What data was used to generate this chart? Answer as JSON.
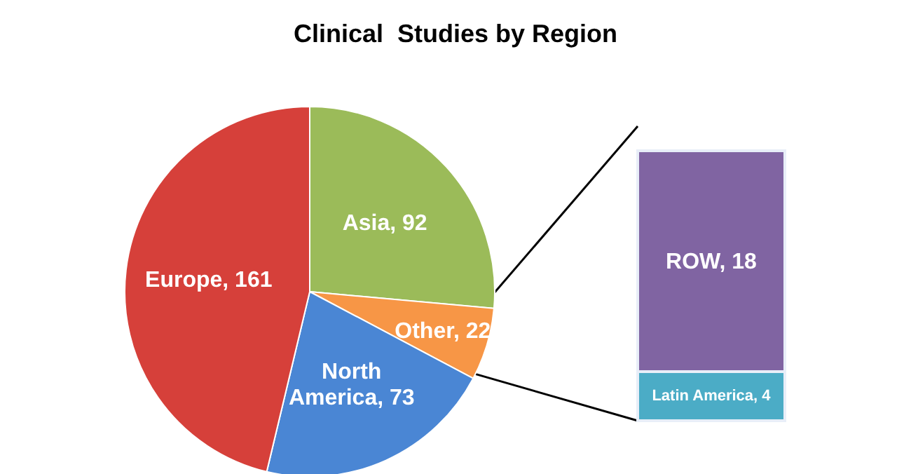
{
  "chart_data": [
    {
      "type": "pie",
      "title": "Clinical  Studies by Region",
      "categories": [
        "Asia",
        "Other",
        "North America",
        "Europe"
      ],
      "values": [
        92,
        22,
        73,
        161
      ],
      "colors": [
        "#9bbb59",
        "#f79646",
        "#4a86d4",
        "#d6403a"
      ],
      "value_labels": [
        ", 92",
        ", 22",
        ", 73",
        ", 161"
      ]
    },
    {
      "type": "bar",
      "stacked": true,
      "categories": [
        null
      ],
      "series": [
        {
          "name": "Latin America",
          "color": "#4bacc6",
          "values": [
            4
          ],
          "value_labels": [
            ", 4"
          ]
        },
        {
          "name": "ROW",
          "color": "#8064a2",
          "values": [
            18
          ],
          "value_labels": [
            ", 18"
          ]
        }
      ]
    }
  ]
}
